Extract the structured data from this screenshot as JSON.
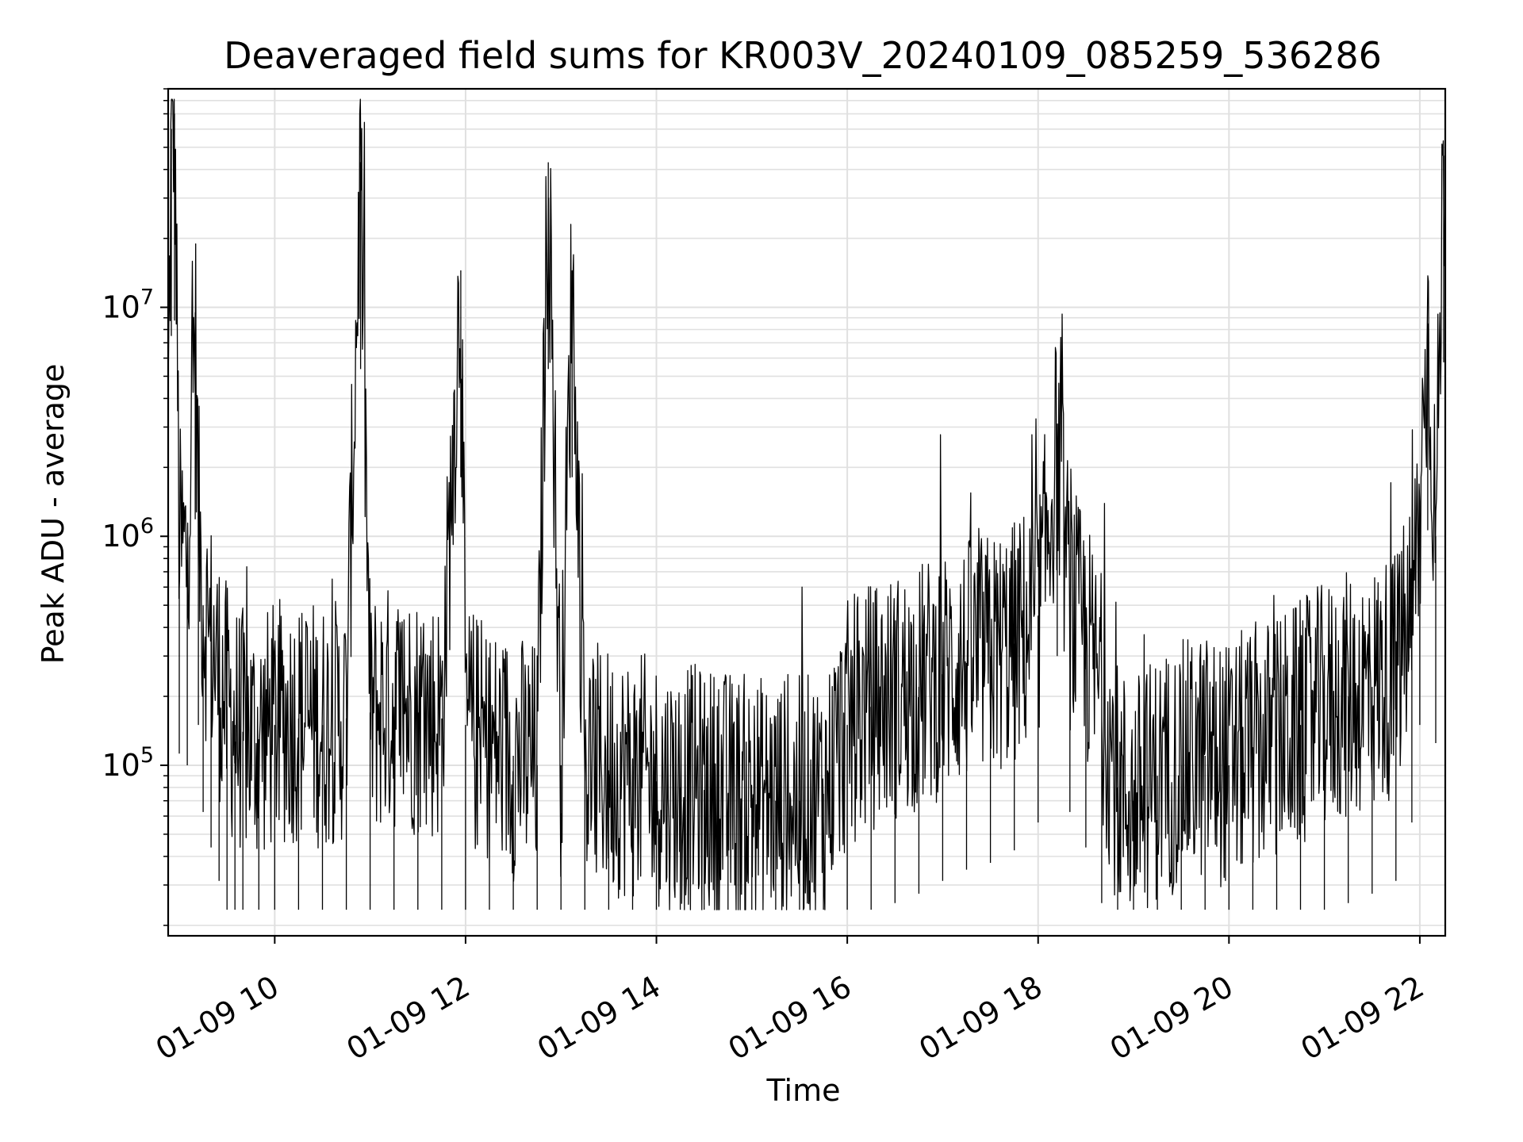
{
  "chart_data": {
    "type": "line",
    "title": "Deaveraged field sums for KR003V_20240109_085259_536286",
    "xlabel": "Time",
    "ylabel": "Peak ADU - average",
    "x_tick_labels": [
      "01-09 10",
      "01-09 12",
      "01-09 14",
      "01-09 16",
      "01-09 18",
      "01-09 20",
      "01-09 22"
    ],
    "y_tick_labels": [
      {
        "base": "10",
        "exp": "5",
        "value": 100000
      },
      {
        "base": "10",
        "exp": "6",
        "value": 1000000
      },
      {
        "base": "10",
        "exp": "7",
        "value": 10000000
      }
    ],
    "xlim": [
      "01-09 08:53",
      "01-09 22:16"
    ],
    "ylim": [
      18000,
      90000000
    ],
    "yscale": "log",
    "grid": true,
    "line_color": "#000000",
    "grid_color": "#e0e0e0",
    "series": [
      {
        "x": [
          "01-09 08:53",
          "01-09 08:55",
          "01-09 08:57",
          "01-09 09:00",
          "01-09 09:05",
          "01-09 09:10",
          "01-09 09:12",
          "01-09 09:15",
          "01-09 09:20",
          "01-09 09:25",
          "01-09 09:30",
          "01-09 09:35",
          "01-09 09:40",
          "01-09 09:50",
          "01-09 10:00",
          "01-09 10:15",
          "01-09 10:30",
          "01-09 10:45",
          "01-09 10:54",
          "01-09 11:00",
          "01-09 11:15",
          "01-09 11:30",
          "01-09 11:45",
          "01-09 11:57",
          "01-09 12:00",
          "01-09 12:15",
          "01-09 12:30",
          "01-09 12:45",
          "01-09 12:52",
          "01-09 13:00",
          "01-09 13:07",
          "01-09 13:15",
          "01-09 13:30",
          "01-09 13:45",
          "01-09 14:00",
          "01-09 14:15",
          "01-09 14:30",
          "01-09 14:45",
          "01-09 15:00",
          "01-09 15:15",
          "01-09 15:30",
          "01-09 15:45",
          "01-09 16:00",
          "01-09 16:15",
          "01-09 16:30",
          "01-09 16:45",
          "01-09 17:00",
          "01-09 17:15",
          "01-09 17:30",
          "01-09 17:45",
          "01-09 18:00",
          "01-09 18:12",
          "01-09 18:20",
          "01-09 18:30",
          "01-09 18:40",
          "01-09 18:50",
          "01-09 19:00",
          "01-09 19:15",
          "01-09 19:30",
          "01-09 19:45",
          "01-09 20:00",
          "01-09 20:15",
          "01-09 20:30",
          "01-09 20:45",
          "01-09 21:00",
          "01-09 21:15",
          "01-09 21:30",
          "01-09 21:45",
          "01-09 21:55",
          "01-09 22:00",
          "01-09 22:05",
          "01-09 22:10",
          "01-09 22:15"
        ],
        "y": [
          3000000,
          60000000,
          70000000,
          900000,
          800000,
          9500000,
          1200000,
          500000,
          350000,
          250000,
          180000,
          150000,
          140000,
          130000,
          150000,
          160000,
          150000,
          160000,
          43000000,
          170000,
          180000,
          170000,
          160000,
          14500000,
          150000,
          120000,
          110000,
          100000,
          43000000,
          100000,
          14500000,
          100000,
          95000,
          90000,
          85000,
          80000,
          78000,
          75000,
          72000,
          70000,
          70000,
          75000,
          150000,
          180000,
          200000,
          220000,
          250000,
          280000,
          300000,
          340000,
          450000,
          2400000,
          500000,
          350000,
          200000,
          80000,
          70000,
          90000,
          100000,
          110000,
          100000,
          120000,
          130000,
          150000,
          180000,
          200000,
          220000,
          250000,
          450000,
          1200000,
          8500000,
          1000000,
          46000000
        ]
      }
    ]
  }
}
